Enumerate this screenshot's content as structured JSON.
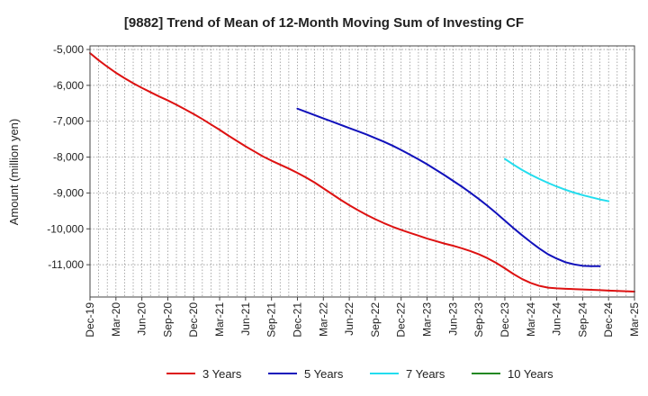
{
  "chart_data": {
    "type": "line",
    "title": "[9882]  Trend of Mean of 12-Month Moving Sum of Investing CF",
    "xlabel": "",
    "ylabel": "Amount (million yen)",
    "ylim": [
      -11900,
      -4900
    ],
    "yticks": [
      -5000,
      -6000,
      -7000,
      -8000,
      -9000,
      -10000,
      -11000
    ],
    "ytick_labels": [
      "-5,000",
      "-6,000",
      "-7,000",
      "-8,000",
      "-9,000",
      "-10,000",
      "-11,000"
    ],
    "xtick_labels": [
      "Dec-19",
      "Mar-20",
      "Jun-20",
      "Sep-20",
      "Dec-20",
      "Mar-21",
      "Jun-21",
      "Sep-21",
      "Dec-21",
      "Mar-22",
      "Jun-22",
      "Sep-22",
      "Dec-22",
      "Mar-23",
      "Jun-23",
      "Sep-23",
      "Dec-23",
      "Mar-24",
      "Jun-24",
      "Sep-24",
      "Dec-24",
      "Mar-25"
    ],
    "x_months": [
      "Dec-19",
      "Jan-20",
      "Feb-20",
      "Mar-20",
      "Apr-20",
      "May-20",
      "Jun-20",
      "Jul-20",
      "Aug-20",
      "Sep-20",
      "Oct-20",
      "Nov-20",
      "Dec-20",
      "Jan-21",
      "Feb-21",
      "Mar-21",
      "Apr-21",
      "May-21",
      "Jun-21",
      "Jul-21",
      "Aug-21",
      "Sep-21",
      "Oct-21",
      "Nov-21",
      "Dec-21",
      "Jan-22",
      "Feb-22",
      "Mar-22",
      "Apr-22",
      "May-22",
      "Jun-22",
      "Jul-22",
      "Aug-22",
      "Sep-22",
      "Oct-22",
      "Nov-22",
      "Dec-22",
      "Jan-23",
      "Feb-23",
      "Mar-23",
      "Apr-23",
      "May-23",
      "Jun-23",
      "Jul-23",
      "Aug-23",
      "Sep-23",
      "Oct-23",
      "Nov-23",
      "Dec-23",
      "Jan-24",
      "Feb-24",
      "Mar-24",
      "Apr-24",
      "May-24",
      "Jun-24",
      "Jul-24",
      "Aug-24",
      "Sep-24",
      "Oct-24",
      "Nov-24",
      "Dec-24",
      "Jan-25",
      "Feb-25",
      "Mar-25"
    ],
    "series": [
      {
        "name": "3 Years",
        "color": "#dd1111",
        "start_index": 0,
        "values": [
          -5100,
          -5300,
          -5480,
          -5650,
          -5800,
          -5940,
          -6070,
          -6190,
          -6310,
          -6420,
          -6540,
          -6670,
          -6800,
          -6940,
          -7090,
          -7240,
          -7400,
          -7550,
          -7700,
          -7840,
          -7980,
          -8100,
          -8210,
          -8320,
          -8440,
          -8570,
          -8710,
          -8870,
          -9030,
          -9190,
          -9340,
          -9480,
          -9610,
          -9730,
          -9840,
          -9940,
          -10030,
          -10110,
          -10190,
          -10270,
          -10340,
          -10410,
          -10470,
          -10540,
          -10620,
          -10710,
          -10820,
          -10950,
          -11100,
          -11260,
          -11400,
          -11510,
          -11590,
          -11640,
          -11660,
          -11670,
          -11680,
          -11690,
          -11700,
          -11710,
          -11720,
          -11730,
          -11740,
          -11750
        ]
      },
      {
        "name": "5 Years",
        "color": "#1111bb",
        "start_index": 0,
        "values": [
          null,
          null,
          null,
          null,
          null,
          null,
          null,
          null,
          null,
          null,
          null,
          null,
          null,
          null,
          null,
          null,
          null,
          null,
          null,
          null,
          null,
          null,
          null,
          null,
          -6650,
          -6740,
          -6830,
          -6920,
          -7010,
          -7100,
          -7190,
          -7280,
          -7370,
          -7470,
          -7570,
          -7680,
          -7800,
          -7930,
          -8060,
          -8200,
          -8350,
          -8500,
          -8660,
          -8820,
          -8990,
          -9170,
          -9360,
          -9560,
          -9770,
          -9980,
          -10180,
          -10370,
          -10550,
          -10710,
          -10830,
          -10930,
          -10990,
          -11030,
          -11040,
          -11040,
          null,
          null,
          null,
          null
        ]
      },
      {
        "name": "7 Years",
        "color": "#22ddee",
        "start_index": 0,
        "values": [
          null,
          null,
          null,
          null,
          null,
          null,
          null,
          null,
          null,
          null,
          null,
          null,
          null,
          null,
          null,
          null,
          null,
          null,
          null,
          null,
          null,
          null,
          null,
          null,
          null,
          null,
          null,
          null,
          null,
          null,
          null,
          null,
          null,
          null,
          null,
          null,
          null,
          null,
          null,
          null,
          null,
          null,
          null,
          null,
          null,
          null,
          null,
          null,
          -8050,
          -8210,
          -8360,
          -8490,
          -8610,
          -8720,
          -8820,
          -8910,
          -8990,
          -9060,
          -9120,
          -9180,
          -9230,
          null,
          null,
          null
        ]
      },
      {
        "name": "10 Years",
        "color": "#228822",
        "start_index": 0,
        "values": []
      }
    ],
    "legend": [
      "3 Years",
      "5 Years",
      "7 Years",
      "10 Years"
    ],
    "legend_position": "bottom",
    "grid": true
  }
}
